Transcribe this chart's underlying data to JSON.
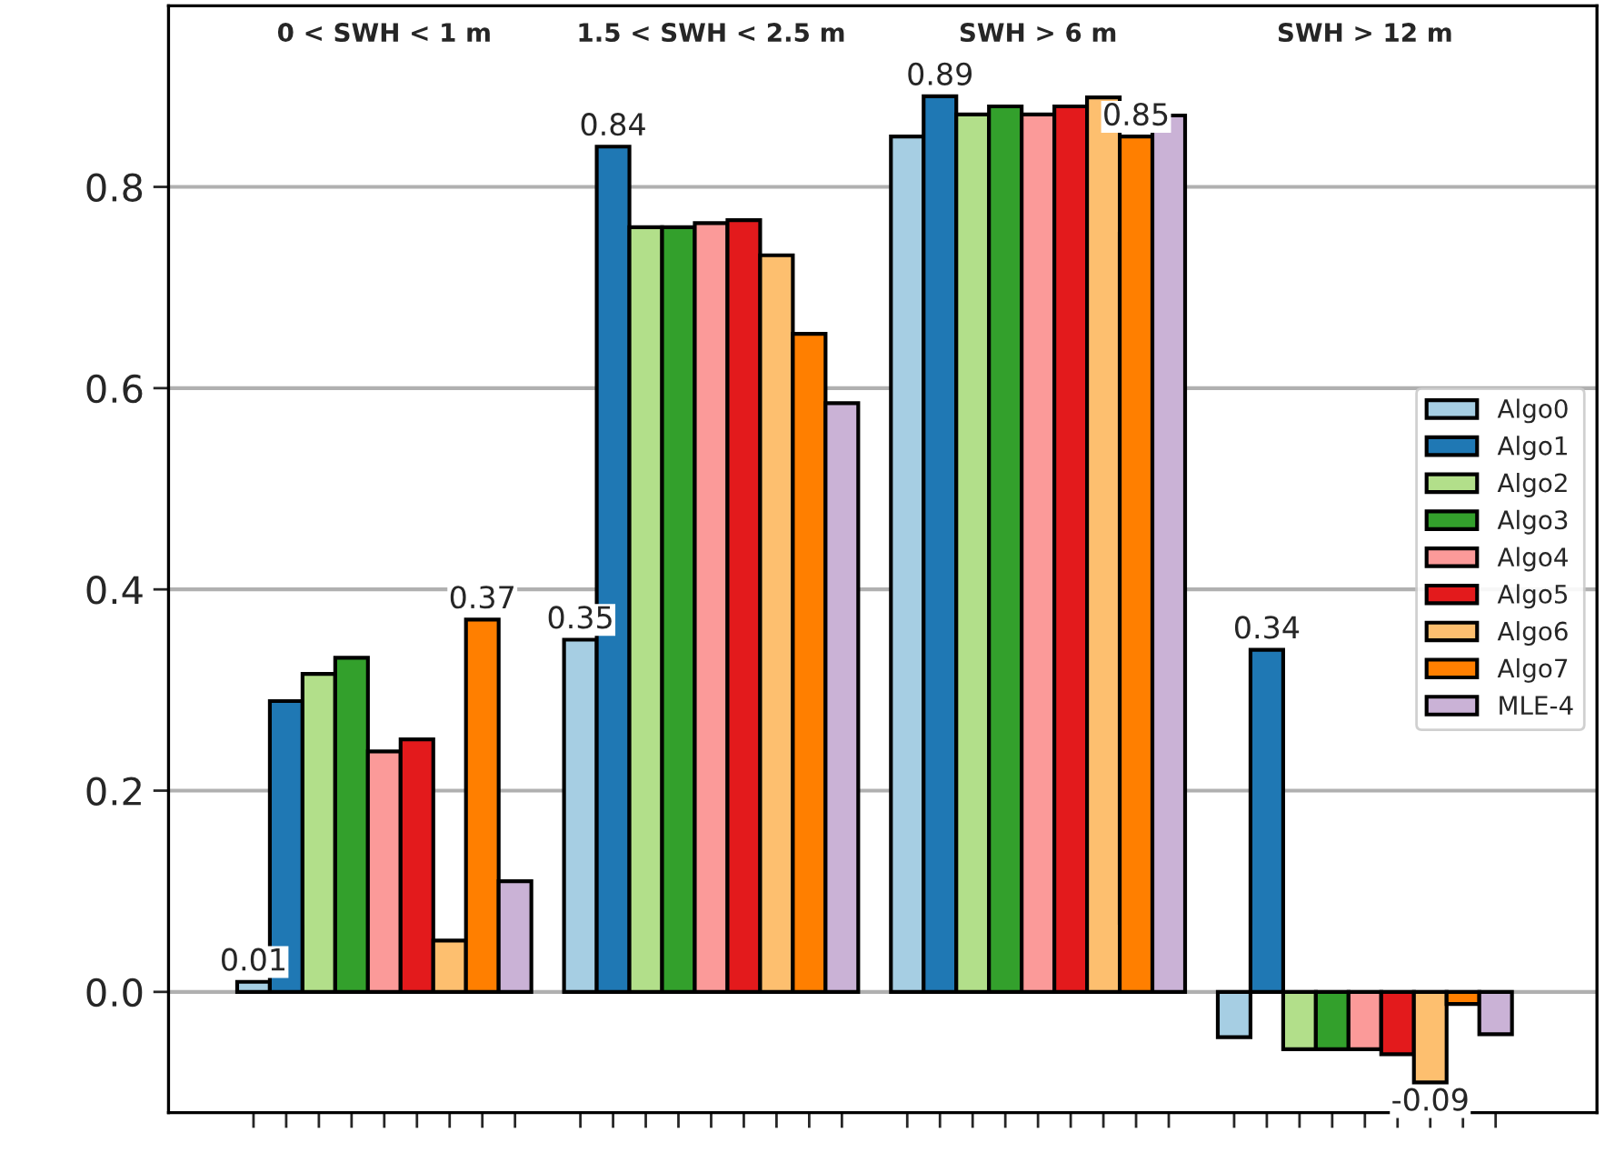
{
  "chart_data": {
    "type": "bar",
    "categories": [
      "0 < SWH < 1 m",
      "1.5 < SWH < 2.5 m",
      "SWH > 6 m",
      "SWH > 12 m"
    ],
    "series": [
      {
        "name": "Algo0",
        "color": "#a6cee3",
        "values": [
          0.01,
          0.35,
          0.85,
          -0.045
        ],
        "value_labels": [
          "0.01",
          "0.35",
          null,
          null
        ]
      },
      {
        "name": "Algo1",
        "color": "#1f78b4",
        "values": [
          0.289,
          0.84,
          0.89,
          0.34
        ],
        "value_labels": [
          null,
          "0.84",
          "0.89",
          "0.34"
        ]
      },
      {
        "name": "Algo2",
        "color": "#b2df8a",
        "values": [
          0.316,
          0.76,
          0.872,
          -0.057
        ],
        "value_labels": [
          null,
          null,
          null,
          null
        ]
      },
      {
        "name": "Algo3",
        "color": "#33a02c",
        "values": [
          0.332,
          0.76,
          0.88,
          -0.057
        ],
        "value_labels": [
          null,
          null,
          null,
          null
        ]
      },
      {
        "name": "Algo4",
        "color": "#fb9a99",
        "values": [
          0.239,
          0.764,
          0.872,
          -0.057
        ],
        "value_labels": [
          null,
          null,
          null,
          null
        ]
      },
      {
        "name": "Algo5",
        "color": "#e31a1c",
        "values": [
          0.251,
          0.767,
          0.88,
          -0.062
        ],
        "value_labels": [
          null,
          null,
          null,
          null
        ]
      },
      {
        "name": "Algo6",
        "color": "#fdbf6f",
        "values": [
          0.051,
          0.732,
          0.889,
          -0.09
        ],
        "value_labels": [
          null,
          null,
          null,
          "-0.09"
        ]
      },
      {
        "name": "Algo7",
        "color": "#ff7f00",
        "values": [
          0.37,
          0.654,
          0.85,
          -0.012
        ],
        "value_labels": [
          "0.37",
          null,
          "0.85",
          null
        ]
      },
      {
        "name": "MLE-4",
        "color": "#cab2d6",
        "values": [
          0.11,
          0.585,
          0.871,
          -0.042
        ],
        "value_labels": [
          null,
          null,
          null,
          null
        ]
      }
    ],
    "ylim": [
      -0.12,
      0.98
    ],
    "yticks": [
      {
        "value": 0,
        "label": "0.0"
      },
      0.2,
      0.4,
      0.6,
      0.8
    ],
    "grid": "y",
    "legend": "center right",
    "tick_labels": "y"
  }
}
